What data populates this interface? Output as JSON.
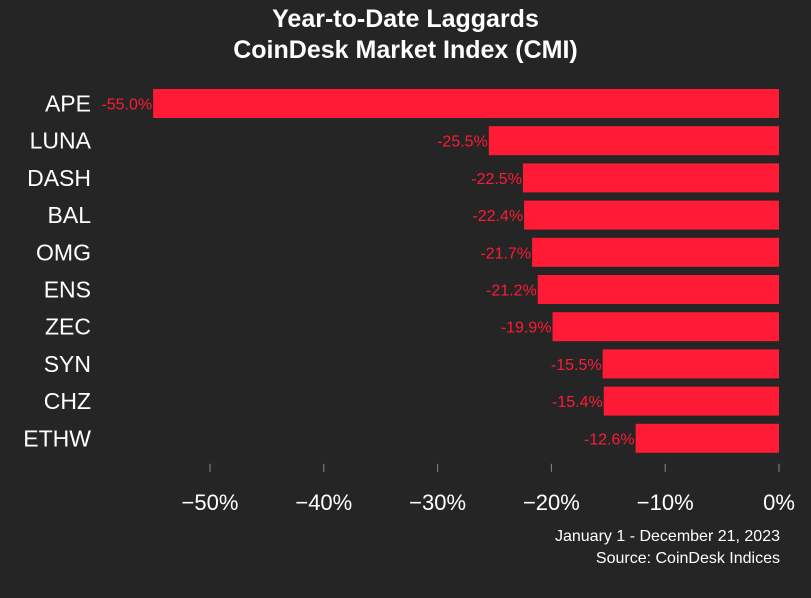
{
  "chart_data": {
    "type": "bar",
    "orientation": "horizontal",
    "title": "Year-to-Date Laggards",
    "subtitle": "CoinDesk Market Index (CMI)",
    "categories": [
      "APE",
      "LUNA",
      "DASH",
      "BAL",
      "OMG",
      "ENS",
      "ZEC",
      "SYN",
      "CHZ",
      "ETHW"
    ],
    "values": [
      -55.0,
      -25.5,
      -22.5,
      -22.4,
      -21.7,
      -21.2,
      -19.9,
      -15.5,
      -15.4,
      -12.6
    ],
    "value_labels": [
      "-55.0%",
      "-25.5%",
      "-22.5%",
      "-22.4%",
      "-21.7%",
      "-21.2%",
      "-19.9%",
      "-15.5%",
      "-15.4%",
      "-12.6%"
    ],
    "xlim": [
      -55,
      0
    ],
    "x_ticks": [
      -50,
      -40,
      -30,
      -20,
      -10,
      0
    ],
    "x_tick_labels": [
      "−50%",
      "−40%",
      "−30%",
      "−20%",
      "−10%",
      "0%"
    ],
    "xlabel": "",
    "ylabel": "",
    "grid": false,
    "legend": "none",
    "colors": {
      "background": "#252525",
      "bar": "#ff1a35",
      "label": "#ff1a35",
      "text": "#ffffff",
      "tick": "#8a8a8a"
    }
  },
  "footer": {
    "date_range": "January 1 - December 21, 2023",
    "source": "Source: CoinDesk Indices"
  }
}
